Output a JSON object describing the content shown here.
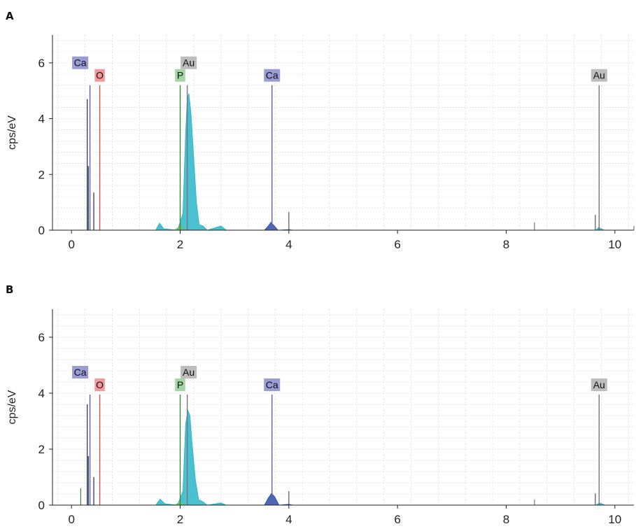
{
  "panels": [
    {
      "letter": "A",
      "chart_data": {
        "type": "area",
        "ylabel": "cps/eV",
        "xlabel": "",
        "xlim": [
          -0.35,
          10.35
        ],
        "ylim": [
          0,
          7
        ],
        "xticks": [
          "0",
          "2",
          "4",
          "6",
          "8",
          "10"
        ],
        "yticks": [
          "0",
          "2",
          "4",
          "6"
        ],
        "grid": true,
        "spectra": [
          {
            "name": "",
            "color": "#2ab5c9",
            "points": [
              [
                1.55,
                0
              ],
              [
                1.62,
                0.25
              ],
              [
                1.7,
                0.05
              ],
              [
                1.95,
                0
              ],
              [
                2.05,
                0.6
              ],
              [
                2.1,
                3.5
              ],
              [
                2.13,
                4.7
              ],
              [
                2.16,
                4.9
              ],
              [
                2.2,
                4.2
              ],
              [
                2.25,
                2.6
              ],
              [
                2.3,
                1.0
              ],
              [
                2.35,
                0.2
              ],
              [
                2.42,
                0.15
              ],
              [
                2.5,
                0
              ],
              [
                2.75,
                0.15
              ],
              [
                2.85,
                0
              ],
              [
                9.65,
                0
              ],
              [
                9.7,
                0.1
              ],
              [
                9.8,
                0
              ]
            ]
          },
          {
            "name": "",
            "color": "#2b4ea8",
            "points": [
              [
                3.55,
                0
              ],
              [
                3.62,
                0.15
              ],
              [
                3.67,
                0.28
              ],
              [
                3.72,
                0.18
              ],
              [
                3.8,
                0
              ],
              [
                4.0,
                0.02
              ],
              [
                4.08,
                0
              ]
            ]
          },
          {
            "name": "",
            "color": "#6cc36c",
            "points": [
              [
                1.9,
                0
              ],
              [
                1.97,
                0.1
              ],
              [
                2.02,
                0.18
              ],
              [
                2.06,
                0.05
              ],
              [
                2.1,
                0
              ]
            ]
          }
        ],
        "markers": [
          {
            "element": "Ca",
            "x": 0.34,
            "y": 5.2,
            "color": "#5f5fb0",
            "bg": "#9b9bd6",
            "label_dx": -14,
            "label_dy": -26
          },
          {
            "element": "O",
            "x": 0.52,
            "y": 5.2,
            "color": "#d05050",
            "bg": "#f29a9a",
            "label_dx": 0,
            "label_dy": -8
          },
          {
            "element": "P",
            "x": 2.0,
            "y": 5.2,
            "color": "#3a8a3a",
            "bg": "#a3d6a3",
            "label_dx": 0,
            "label_dy": -8
          },
          {
            "element": "Au",
            "x": 2.13,
            "y": 5.2,
            "color": "#777777",
            "bg": "#bdbdbd",
            "label_dx": 2,
            "label_dy": -26
          },
          {
            "element": "Ca",
            "x": 3.69,
            "y": 5.2,
            "color": "#5f5fb0",
            "bg": "#9b9bd6",
            "label_dx": 0,
            "label_dy": -8
          },
          {
            "element": "Au",
            "x": 9.71,
            "y": 5.2,
            "color": "#777777",
            "bg": "#bdbdbd",
            "label_dx": 0,
            "label_dy": -8
          }
        ],
        "lines": [
          {
            "x": 0.29,
            "y": 4.7,
            "color": "#1a2a55"
          },
          {
            "x": 0.31,
            "y": 2.3,
            "color": "#1a2a55"
          },
          {
            "x": 0.41,
            "y": 1.35,
            "color": "#1a2a55"
          },
          {
            "x": 4.0,
            "y": 0.65,
            "color": "#555555"
          },
          {
            "x": 8.52,
            "y": 0.28,
            "color": "#777777"
          },
          {
            "x": 9.64,
            "y": 0.55,
            "color": "#555555"
          },
          {
            "x": 10.35,
            "y": 0.15,
            "color": "#777777"
          }
        ]
      }
    },
    {
      "letter": "B",
      "chart_data": {
        "type": "area",
        "ylabel": "cps/eV",
        "xlabel": "",
        "xlim": [
          -0.35,
          10.35
        ],
        "ylim": [
          0,
          7
        ],
        "xticks": [
          "0",
          "2",
          "4",
          "6",
          "8",
          "10"
        ],
        "yticks": [
          "0",
          "2",
          "4",
          "6"
        ],
        "grid": true,
        "spectra": [
          {
            "name": "",
            "color": "#2ab5c9",
            "points": [
              [
                1.55,
                0
              ],
              [
                1.63,
                0.22
              ],
              [
                1.72,
                0.05
              ],
              [
                1.95,
                0
              ],
              [
                2.05,
                0.5
              ],
              [
                2.1,
                2.9
              ],
              [
                2.14,
                3.4
              ],
              [
                2.18,
                3.2
              ],
              [
                2.22,
                2.2
              ],
              [
                2.28,
                0.9
              ],
              [
                2.34,
                0.2
              ],
              [
                2.42,
                0.12
              ],
              [
                2.5,
                0
              ],
              [
                2.75,
                0.08
              ],
              [
                2.85,
                0
              ],
              [
                9.65,
                0
              ],
              [
                9.72,
                0.08
              ],
              [
                9.82,
                0
              ]
            ]
          },
          {
            "name": "",
            "color": "#2b4ea8",
            "points": [
              [
                3.55,
                0
              ],
              [
                3.62,
                0.25
              ],
              [
                3.68,
                0.42
              ],
              [
                3.74,
                0.3
              ],
              [
                3.82,
                0
              ],
              [
                4.0,
                0.03
              ],
              [
                4.08,
                0
              ]
            ]
          },
          {
            "name": "",
            "color": "#6cc36c",
            "points": [
              [
                1.9,
                0
              ],
              [
                1.97,
                0.08
              ],
              [
                2.02,
                0.12
              ],
              [
                2.07,
                0
              ]
            ]
          }
        ],
        "markers": [
          {
            "element": "Ca",
            "x": 0.34,
            "y": 3.95,
            "color": "#5f5fb0",
            "bg": "#9b9bd6",
            "label_dx": -14,
            "label_dy": -26
          },
          {
            "element": "O",
            "x": 0.52,
            "y": 3.95,
            "color": "#d05050",
            "bg": "#f29a9a",
            "label_dx": 0,
            "label_dy": -8
          },
          {
            "element": "P",
            "x": 2.0,
            "y": 3.95,
            "color": "#3a8a3a",
            "bg": "#a3d6a3",
            "label_dx": 0,
            "label_dy": -8
          },
          {
            "element": "Au",
            "x": 2.13,
            "y": 3.95,
            "color": "#777777",
            "bg": "#bdbdbd",
            "label_dx": 2,
            "label_dy": -26
          },
          {
            "element": "Ca",
            "x": 3.69,
            "y": 3.95,
            "color": "#5f5fb0",
            "bg": "#9b9bd6",
            "label_dx": 0,
            "label_dy": -8
          },
          {
            "element": "Au",
            "x": 9.71,
            "y": 3.95,
            "color": "#777777",
            "bg": "#bdbdbd",
            "label_dx": 0,
            "label_dy": -8
          }
        ],
        "lines": [
          {
            "x": 0.17,
            "y": 0.6,
            "color": "#3a8a3a"
          },
          {
            "x": 0.29,
            "y": 3.6,
            "color": "#1a2a55"
          },
          {
            "x": 0.31,
            "y": 1.75,
            "color": "#1a2a55"
          },
          {
            "x": 0.41,
            "y": 1.0,
            "color": "#1a2a55"
          },
          {
            "x": 4.0,
            "y": 0.5,
            "color": "#555555"
          },
          {
            "x": 8.52,
            "y": 0.2,
            "color": "#777777"
          },
          {
            "x": 9.64,
            "y": 0.42,
            "color": "#555555"
          }
        ]
      }
    }
  ]
}
